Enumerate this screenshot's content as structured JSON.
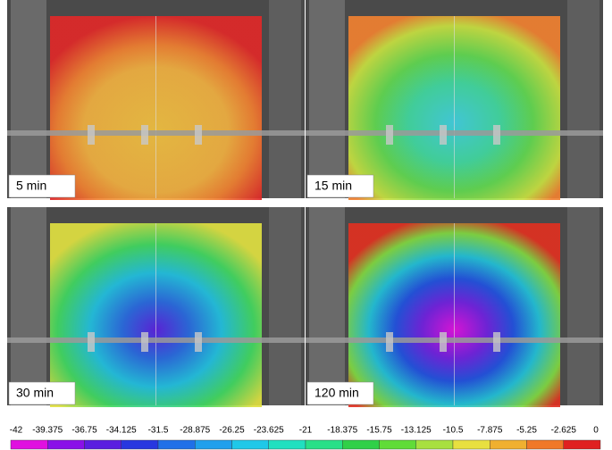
{
  "panels": [
    {
      "label": "5 min"
    },
    {
      "label": "15 min"
    },
    {
      "label": "30 min"
    },
    {
      "label": "120 min"
    }
  ],
  "colorbar": {
    "labels": [
      "-42",
      "-39.375",
      "-36.75",
      "-34.125",
      "-31.5",
      "-28.875",
      "-26.25",
      "-23.625",
      "-21",
      "-18.375",
      "-15.75",
      "-13.125",
      "-10.5",
      "-7.875",
      "-5.25",
      "-2.625",
      "0"
    ],
    "colors": [
      "#e010e0",
      "#8a10e8",
      "#5a1ee0",
      "#2838e0",
      "#2070e8",
      "#20a0ec",
      "#20c8e8",
      "#20e0c0",
      "#28e088",
      "#30d048",
      "#60dc38",
      "#a8e040",
      "#e8e040",
      "#f0b030",
      "#f07828",
      "#e02020"
    ]
  }
}
